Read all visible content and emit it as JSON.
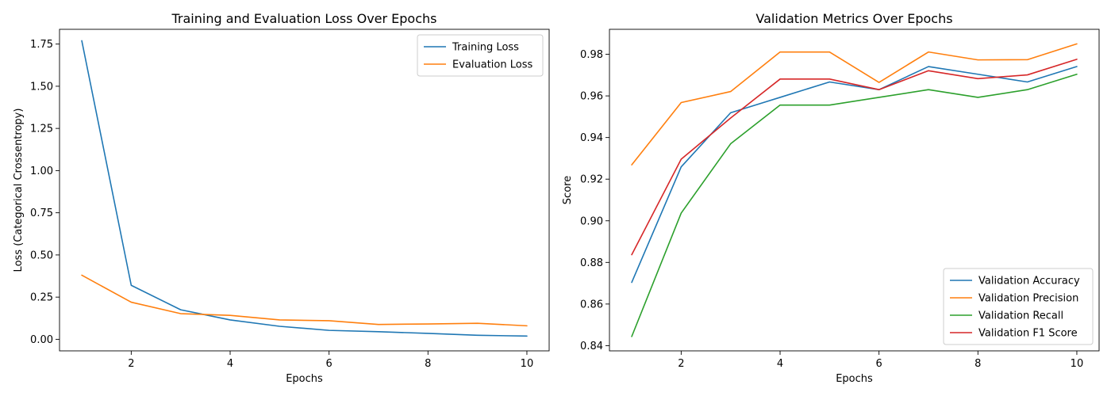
{
  "chart_data": [
    {
      "type": "line",
      "title": "Training and Evaluation Loss Over Epochs",
      "xlabel": "Epochs",
      "ylabel": "Loss (Categorical Crossentropy)",
      "xlim": [
        0.55,
        10.45
      ],
      "ylim": [
        -0.0685,
        1.8375
      ],
      "xticks": [
        2,
        4,
        6,
        8,
        10
      ],
      "yticks": [
        0.0,
        0.25,
        0.5,
        0.75,
        1.0,
        1.25,
        1.5,
        1.75
      ],
      "ytick_labels": [
        "0.00",
        "0.25",
        "0.50",
        "0.75",
        "1.00",
        "1.25",
        "1.50",
        "1.75"
      ],
      "grid": false,
      "legend_position": "upper right",
      "x": [
        1,
        2,
        3,
        4,
        5,
        6,
        7,
        8,
        9,
        10
      ],
      "series": [
        {
          "name": "Training Loss",
          "color": "#1f77b4",
          "values": [
            1.77,
            0.32,
            0.175,
            0.115,
            0.077,
            0.053,
            0.045,
            0.035,
            0.024,
            0.019
          ]
        },
        {
          "name": "Evaluation Loss",
          "color": "#ff7f0e",
          "values": [
            0.38,
            0.22,
            0.152,
            0.142,
            0.115,
            0.11,
            0.088,
            0.091,
            0.095,
            0.08
          ]
        }
      ]
    },
    {
      "type": "line",
      "title": "Validation Metrics Over Epochs",
      "xlabel": "Epochs",
      "ylabel": "Score",
      "xlim": [
        0.55,
        10.45
      ],
      "ylim": [
        0.8375,
        0.992
      ],
      "xticks": [
        2,
        4,
        6,
        8,
        10
      ],
      "yticks": [
        0.84,
        0.86,
        0.88,
        0.9,
        0.92,
        0.94,
        0.96,
        0.98
      ],
      "ytick_labels": [
        "0.84",
        "0.86",
        "0.88",
        "0.90",
        "0.92",
        "0.94",
        "0.96",
        "0.98"
      ],
      "grid": false,
      "legend_position": "lower right",
      "x": [
        1,
        2,
        3,
        4,
        5,
        6,
        7,
        8,
        9,
        10
      ],
      "series": [
        {
          "name": "Validation Accuracy",
          "color": "#1f77b4",
          "values": [
            0.8704,
            0.9259,
            0.9519,
            0.9593,
            0.9667,
            0.963,
            0.9741,
            0.9704,
            0.9667,
            0.9741
          ]
        },
        {
          "name": "Validation Precision",
          "color": "#ff7f0e",
          "values": [
            0.9269,
            0.9568,
            0.9621,
            0.9811,
            0.9811,
            0.9665,
            0.9811,
            0.9773,
            0.9774,
            0.985
          ]
        },
        {
          "name": "Validation Recall",
          "color": "#2ca02c",
          "values": [
            0.8444,
            0.9037,
            0.937,
            0.9556,
            0.9556,
            0.9593,
            0.963,
            0.9593,
            0.963,
            0.9704
          ]
        },
        {
          "name": "Validation F1 Score",
          "color": "#d62728",
          "values": [
            0.8837,
            0.9296,
            0.9494,
            0.9681,
            0.9681,
            0.963,
            0.9721,
            0.9683,
            0.9701,
            0.9776
          ]
        }
      ]
    }
  ]
}
